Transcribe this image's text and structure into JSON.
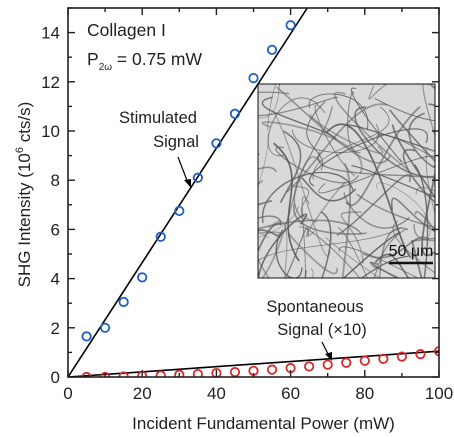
{
  "chart_data": {
    "type": "scatter",
    "xlabel": "Incident Fundamental Power (mW)",
    "ylabel_main": "SHG Intensity (10",
    "ylabel_exp": "6",
    "ylabel_tail": " cts/s)",
    "xlim": [
      0,
      100
    ],
    "ylim": [
      0,
      15
    ],
    "xticks": [
      0,
      20,
      40,
      60,
      80,
      100
    ],
    "yticks": [
      0,
      2,
      4,
      6,
      8,
      10,
      12,
      14
    ],
    "sample_label": "Collagen I",
    "power_label": {
      "symbol": "P",
      "subscript": "2ω",
      "text": " = 0.75 mW"
    },
    "series": [
      {
        "name": "Stimulated Signal",
        "label_lines": [
          "Stimulated",
          "Signal"
        ],
        "color": "#1f5fbf",
        "marker": "open-circle",
        "x": [
          5,
          10,
          15,
          20,
          25,
          30,
          35,
          40,
          45,
          50,
          55,
          60
        ],
        "y": [
          1.65,
          2.0,
          3.05,
          4.05,
          5.7,
          6.75,
          8.1,
          9.5,
          10.7,
          12.15,
          13.3,
          14.3
        ],
        "fit": {
          "x": [
            0,
            64.5
          ],
          "y": [
            0,
            15
          ]
        }
      },
      {
        "name": "Spontaneous Signal (×10)",
        "label_lines": [
          "Spontaneous",
          "Signal (×10)"
        ],
        "color": "#d42a2a",
        "marker": "open-circle",
        "x": [
          5,
          10,
          15,
          20,
          25,
          30,
          35,
          40,
          45,
          50,
          55,
          60,
          65,
          70,
          75,
          80,
          85,
          90,
          95,
          100
        ],
        "y": [
          0.0,
          0.0,
          0.02,
          0.04,
          0.06,
          0.09,
          0.12,
          0.16,
          0.2,
          0.25,
          0.3,
          0.36,
          0.43,
          0.5,
          0.58,
          0.66,
          0.74,
          0.83,
          0.93,
          1.05
        ],
        "fit": {
          "x": [
            0,
            100
          ],
          "y": [
            0,
            1.05
          ]
        }
      }
    ],
    "inset": {
      "scale_bar_label": "50 μm"
    }
  },
  "colors": {
    "axis": "#231f20",
    "fit_line": "#000000",
    "inset_bg": "#d9d9d9",
    "inset_fiber": "#5a5a5a"
  }
}
